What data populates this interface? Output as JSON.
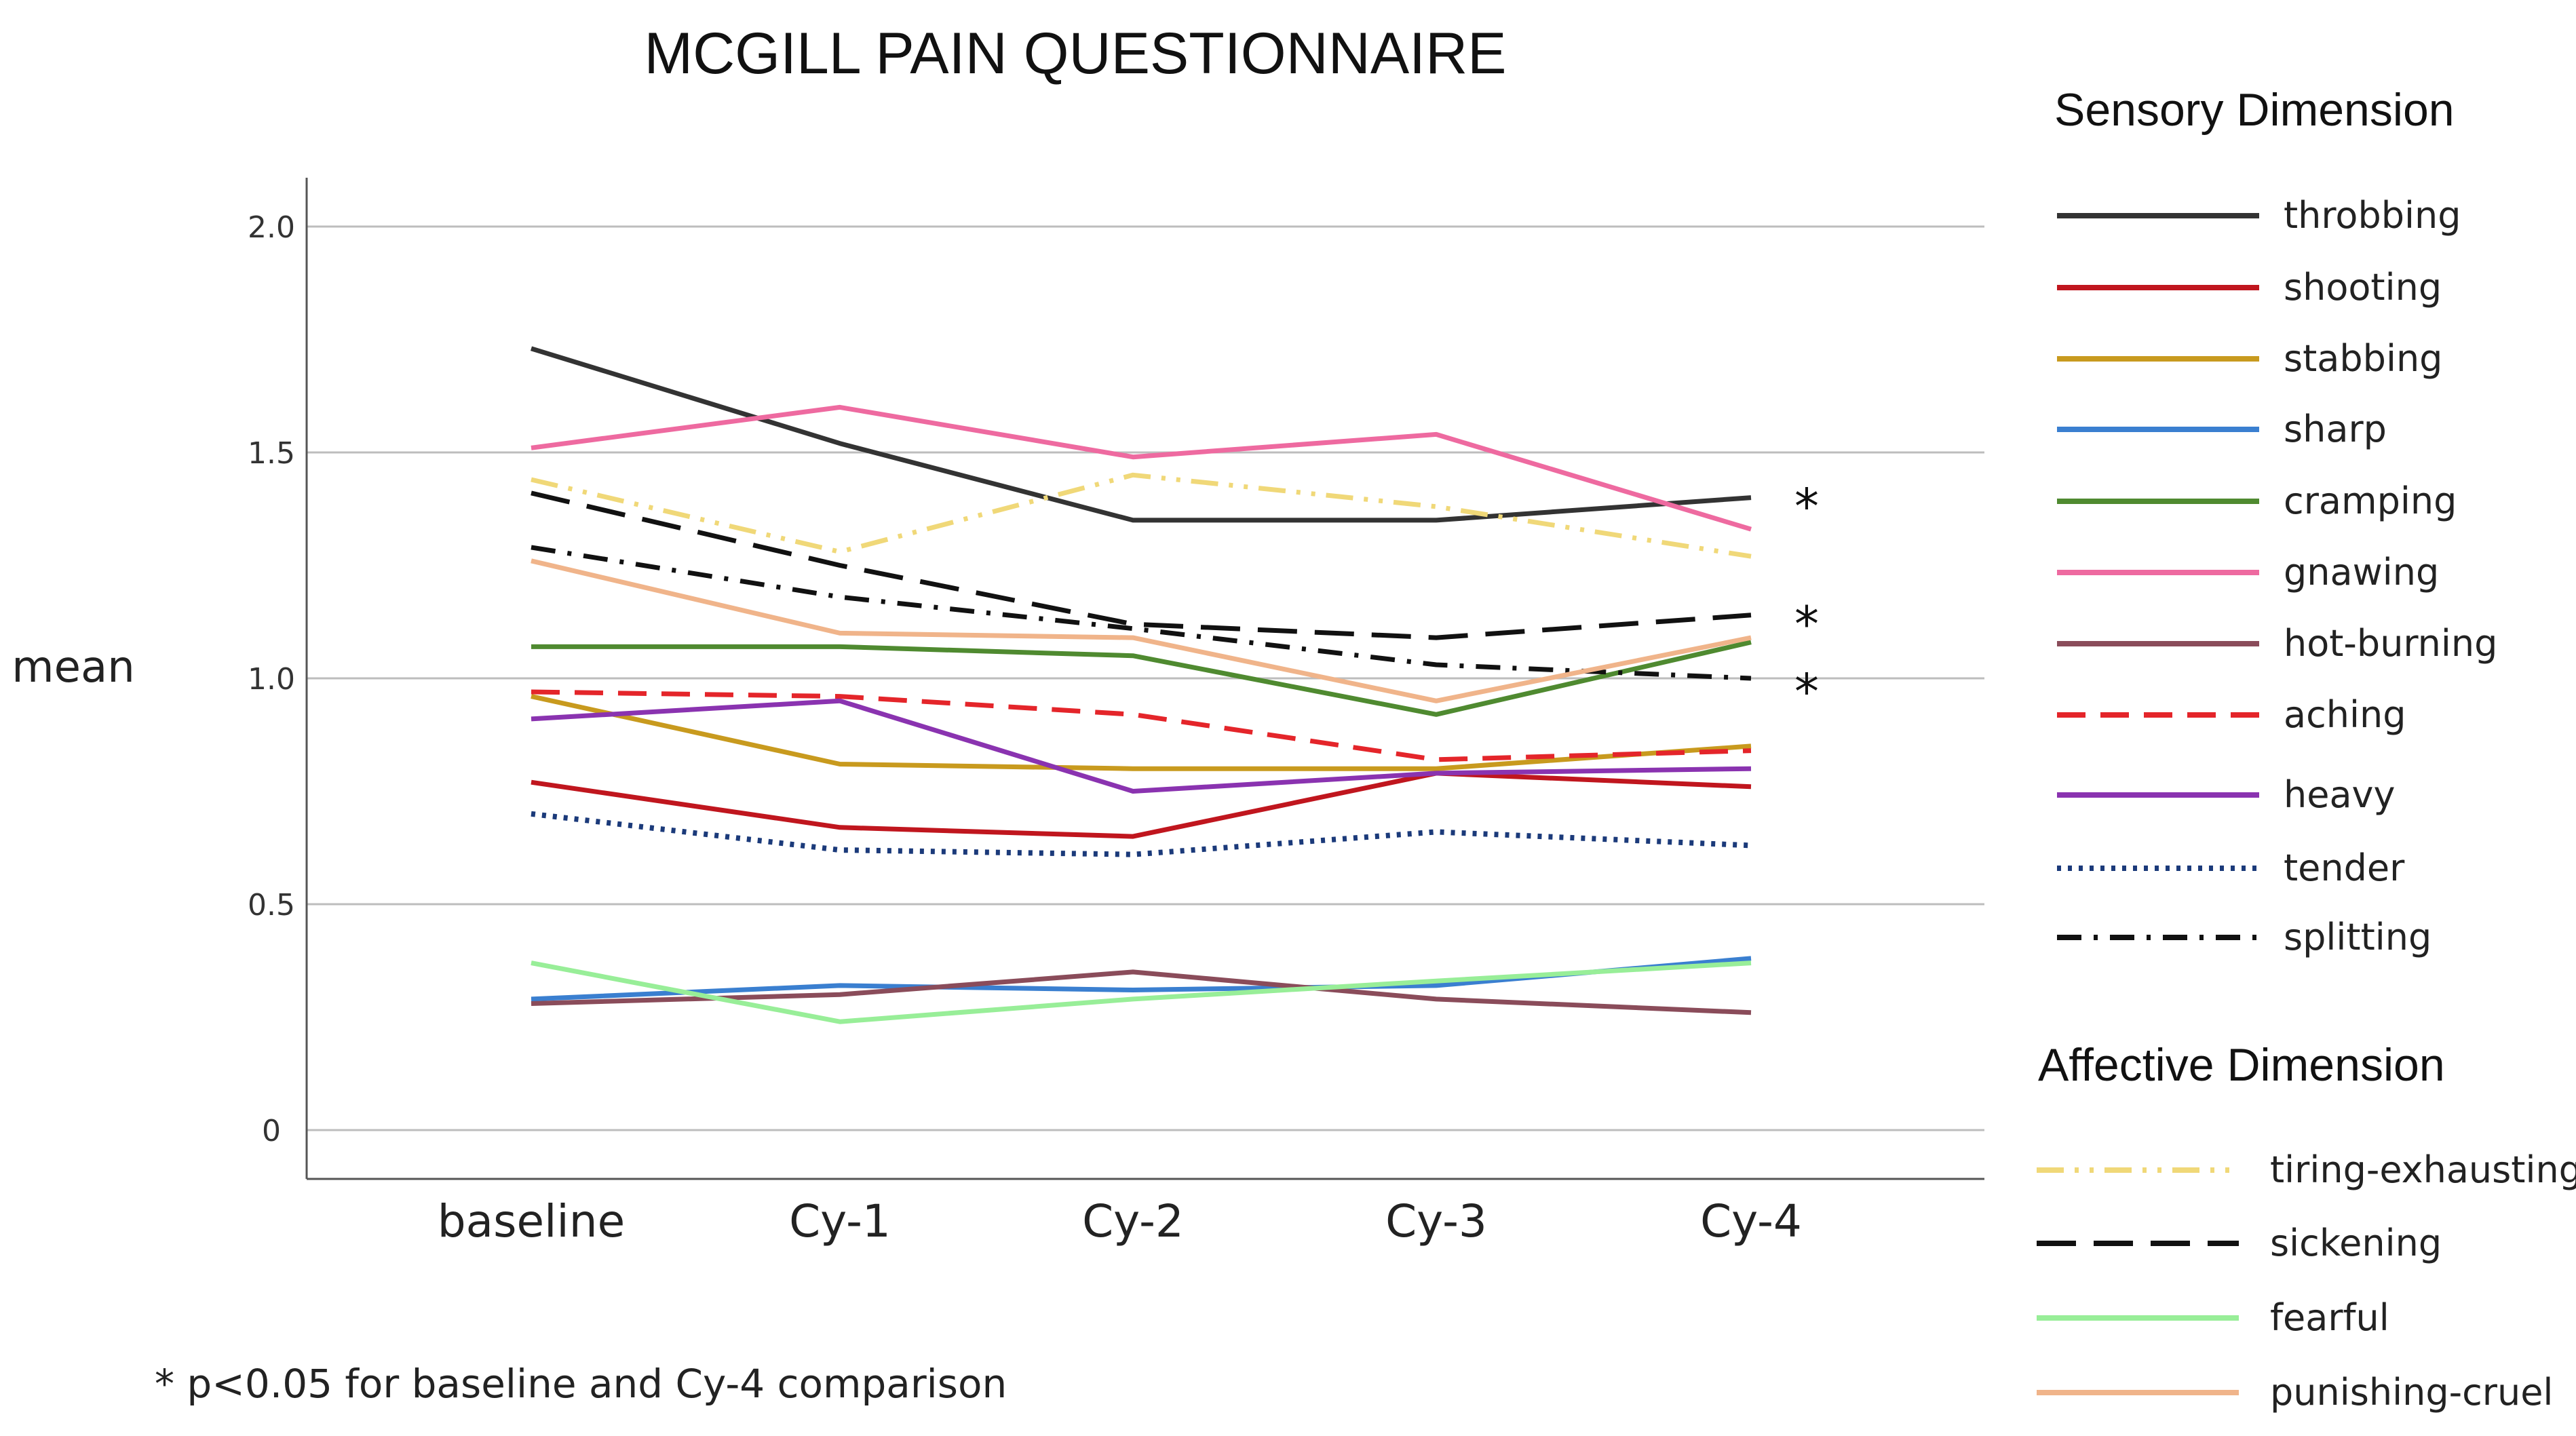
{
  "chart_data": {
    "type": "line",
    "title": "MCGILL PAIN QUESTIONNAIRE",
    "xlabel": "",
    "ylabel": "mean",
    "ylim": [
      -0.1,
      2.1
    ],
    "yticks": [
      "0",
      "0.5",
      "1.0",
      "1.5",
      "2.0"
    ],
    "ytick_values": [
      0,
      0.5,
      1.0,
      1.5,
      2.0
    ],
    "grid": true,
    "categories": [
      "baseline",
      "Cy-1",
      "Cy-2",
      "Cy-3",
      "Cy-4"
    ],
    "legend_groups": [
      {
        "heading": "Sensory Dimension",
        "series_names": [
          "throbbing",
          "shooting",
          "stabbing",
          "sharp",
          "cramping",
          "gnawing",
          "hot-burning",
          "aching",
          "heavy",
          "tender",
          "splitting"
        ]
      },
      {
        "heading": "Affective Dimension",
        "series_names": [
          "tiring-exhausting",
          "sickening",
          "fearful",
          "punishing-cruel"
        ]
      }
    ],
    "series": [
      {
        "name": "throbbing",
        "color": "#333333",
        "style": "solid",
        "values": [
          1.73,
          1.52,
          1.35,
          1.35,
          1.4
        ]
      },
      {
        "name": "shooting",
        "color": "#c0161e",
        "style": "solid",
        "values": [
          0.77,
          0.67,
          0.65,
          0.79,
          0.76
        ]
      },
      {
        "name": "stabbing",
        "color": "#c89a1e",
        "style": "solid",
        "values": [
          0.96,
          0.81,
          0.8,
          0.8,
          0.85
        ]
      },
      {
        "name": "sharp",
        "color": "#3a7fd0",
        "style": "solid",
        "values": [
          0.29,
          0.32,
          0.31,
          0.32,
          0.38
        ]
      },
      {
        "name": "cramping",
        "color": "#4f8a30",
        "style": "solid",
        "values": [
          1.07,
          1.07,
          1.05,
          0.92,
          1.08
        ]
      },
      {
        "name": "gnawing",
        "color": "#ee6aa0",
        "style": "solid",
        "values": [
          1.51,
          1.6,
          1.49,
          1.54,
          1.33
        ]
      },
      {
        "name": "hot-burning",
        "color": "#8a4c5a",
        "style": "solid",
        "values": [
          0.28,
          0.3,
          0.35,
          0.29,
          0.26
        ]
      },
      {
        "name": "aching",
        "color": "#e4252a",
        "style": "dashed",
        "values": [
          0.97,
          0.96,
          0.92,
          0.82,
          0.84
        ]
      },
      {
        "name": "heavy",
        "color": "#8a33b0",
        "style": "solid",
        "values": [
          0.91,
          0.95,
          0.75,
          0.79,
          0.8
        ]
      },
      {
        "name": "tender",
        "color": "#1b3a7a",
        "style": "dotted",
        "values": [
          0.7,
          0.62,
          0.61,
          0.66,
          0.63
        ]
      },
      {
        "name": "splitting",
        "color": "#111111",
        "style": "dashdot",
        "values": [
          1.29,
          1.18,
          1.11,
          1.03,
          1.0
        ]
      },
      {
        "name": "tiring-exhausting",
        "color": "#f0d878",
        "style": "dashdotdot",
        "values": [
          1.44,
          1.28,
          1.45,
          1.38,
          1.27
        ]
      },
      {
        "name": "sickening",
        "color": "#111111",
        "style": "longdash",
        "values": [
          1.41,
          1.25,
          1.12,
          1.09,
          1.14
        ]
      },
      {
        "name": "fearful",
        "color": "#98ee98",
        "style": "solid",
        "values": [
          0.37,
          0.24,
          0.29,
          0.33,
          0.37
        ]
      },
      {
        "name": "punishing-cruel",
        "color": "#f0b48a",
        "style": "solid",
        "values": [
          1.26,
          1.1,
          1.09,
          0.95,
          1.09
        ]
      }
    ],
    "significance_markers": [
      {
        "text": "*",
        "series": "throbbing",
        "category": "Cy-4",
        "value": 1.4
      },
      {
        "text": "*",
        "series": "sickening",
        "category": "Cy-4",
        "value": 1.14
      },
      {
        "text": "*",
        "series": "splitting",
        "category": "Cy-4",
        "value": 0.99
      }
    ],
    "footnote": "* p<0.05 for baseline and Cy-4 comparison"
  }
}
